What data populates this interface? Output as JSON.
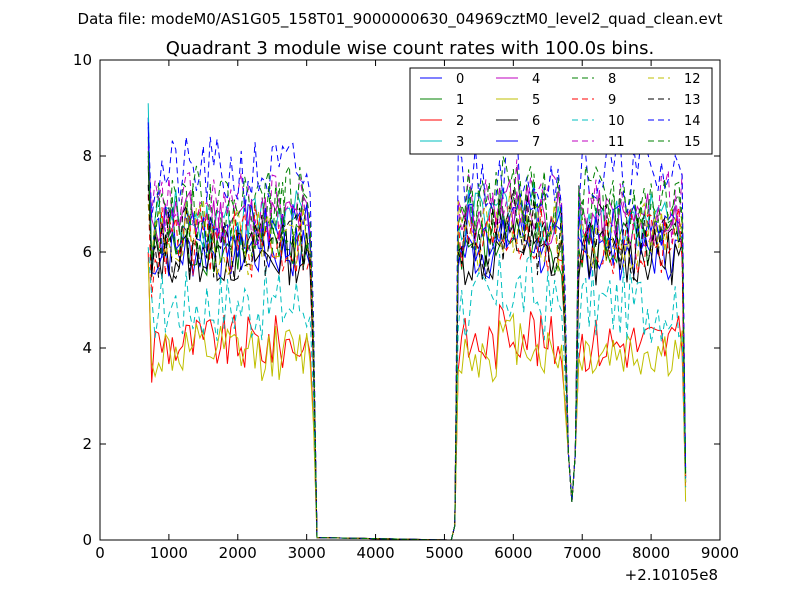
{
  "figure": {
    "suptitle": "Data file: modeM0/AS1G05_158T01_9000000630_04969cztM0_level2_quad_clean.evt"
  },
  "chart_data": {
    "type": "line",
    "title": "Quadrant 3 module wise count rates with 100.0s bins.",
    "xlabel": "",
    "ylabel": "",
    "x_offset_label": "+2.10105e8",
    "xlim": [
      0,
      9000
    ],
    "ylim": [
      0,
      10
    ],
    "xticks": [
      0,
      1000,
      2000,
      3000,
      4000,
      5000,
      6000,
      7000,
      8000,
      9000
    ],
    "yticks": [
      0,
      2,
      4,
      6,
      8,
      10
    ],
    "grid": false,
    "legend": {
      "placement": "top-right",
      "columns": 4
    },
    "segment_1_x": [
      700,
      750,
      800,
      850,
      900,
      950,
      1000,
      1050,
      1100,
      1150,
      1200,
      1250,
      1300,
      1350,
      1400,
      1450,
      1500,
      1550,
      1600,
      1650,
      1700,
      1750,
      1800,
      1850,
      1900,
      1950,
      2000,
      2050,
      2100,
      2150,
      2200,
      2250,
      2300,
      2350,
      2400,
      2450,
      2500,
      2550,
      2600,
      2650,
      2700,
      2750,
      2800,
      2850,
      2900,
      2950,
      3000,
      3050,
      3100,
      3150,
      3200
    ],
    "segment_2_x": [
      5100,
      5150,
      5200,
      5250,
      5300,
      5350,
      5400,
      5450,
      5500,
      5550,
      5600,
      5650,
      5700,
      5750,
      5800,
      5850,
      5900,
      5950,
      6000,
      6050,
      6100,
      6150,
      6200,
      6250,
      6300,
      6350,
      6400,
      6450,
      6500,
      6550,
      6600,
      6650,
      6700,
      6750,
      6800,
      6850,
      6900,
      6950,
      7000,
      7050,
      7100,
      7150,
      7200,
      7250,
      7300,
      7350,
      7400,
      7450,
      7500,
      7550,
      7600,
      7650,
      7700,
      7750,
      7800,
      7850,
      7900,
      7950,
      8000,
      8050,
      8100,
      8150,
      8200,
      8250,
      8300,
      8350,
      8400,
      8450,
      8500
    ],
    "series": [
      {
        "name": "0",
        "color": "#0000ff",
        "dash": "solid",
        "level": 6.0,
        "seg1_start": 8.8,
        "seg2_end": 1.2
      },
      {
        "name": "1",
        "color": "#008000",
        "dash": "solid",
        "level": 6.1,
        "seg1_start": 8.4,
        "seg2_end": 1.3
      },
      {
        "name": "2",
        "color": "#ff0000",
        "dash": "solid",
        "level": 4.1,
        "seg1_start": 6.0,
        "seg2_end": 1.1
      },
      {
        "name": "3",
        "color": "#00bfbf",
        "dash": "solid",
        "level": 6.7,
        "seg1_start": 9.1,
        "seg2_end": 1.4
      },
      {
        "name": "4",
        "color": "#bf00bf",
        "dash": "solid",
        "level": 6.7,
        "seg1_start": 8.2,
        "seg2_end": 1.3
      },
      {
        "name": "5",
        "color": "#bfbf00",
        "dash": "solid",
        "level": 3.9,
        "seg1_start": 5.8,
        "seg2_end": 0.8
      },
      {
        "name": "6",
        "color": "#000000",
        "dash": "solid",
        "level": 5.9,
        "seg1_start": 7.8,
        "seg2_end": 1.2
      },
      {
        "name": "7",
        "color": "#0000ff",
        "dash": "solid",
        "level": 6.4,
        "seg1_start": 8.6,
        "seg2_end": 1.3
      },
      {
        "name": "8",
        "color": "#008000",
        "dash": "dashed",
        "level": 6.7,
        "seg1_start": 8.0,
        "seg2_end": 1.4
      },
      {
        "name": "9",
        "color": "#ff0000",
        "dash": "dashed",
        "level": 6.2,
        "seg1_start": 7.2,
        "seg2_end": 1.3
      },
      {
        "name": "10",
        "color": "#00bfbf",
        "dash": "dashed",
        "level": 4.9,
        "seg1_start": 6.1,
        "seg2_end": 1.1
      },
      {
        "name": "11",
        "color": "#bf00bf",
        "dash": "dashed",
        "level": 6.9,
        "seg1_start": 7.9,
        "seg2_end": 1.4
      },
      {
        "name": "12",
        "color": "#bfbf00",
        "dash": "dashed",
        "level": 6.3,
        "seg1_start": 7.0,
        "seg2_end": 1.2
      },
      {
        "name": "13",
        "color": "#000000",
        "dash": "dashed",
        "level": 6.2,
        "seg1_start": 7.4,
        "seg2_end": 1.3
      },
      {
        "name": "14",
        "color": "#0000ff",
        "dash": "dashed",
        "level": 7.6,
        "seg1_start": 8.7,
        "seg2_end": 1.5
      },
      {
        "name": "15",
        "color": "#008000",
        "dash": "dashed",
        "level": 7.0,
        "seg1_start": 8.1,
        "seg2_end": 1.4
      }
    ]
  }
}
